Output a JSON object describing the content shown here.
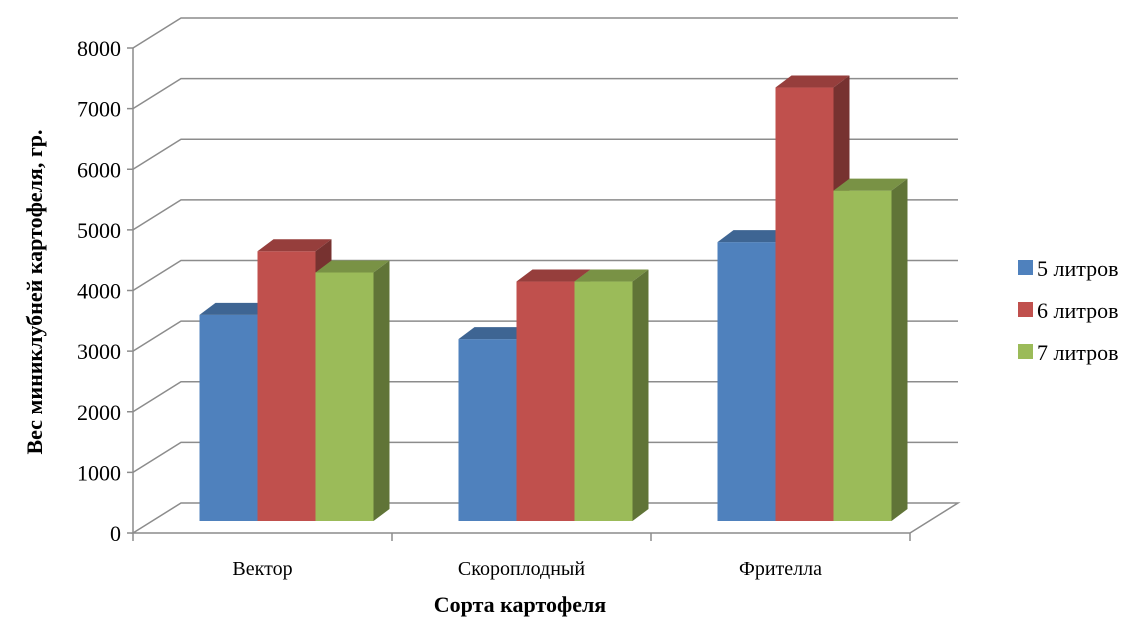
{
  "chart_data": {
    "type": "bar",
    "title": "",
    "xlabel": "Сорта картофеля",
    "ylabel": "Вес миниклубней картофеля,  гр.",
    "categories": [
      "Вектор",
      "Скороплодный",
      "Фрителла"
    ],
    "series": [
      {
        "name": "5 литров",
        "values": [
          3400,
          3000,
          4600
        ],
        "color": "#4F81BD"
      },
      {
        "name": "6 литров",
        "values": [
          4450,
          3950,
          7150
        ],
        "color": "#C0504D"
      },
      {
        "name": "7 литров",
        "values": [
          4100,
          3950,
          5450
        ],
        "color": "#9BBB59"
      }
    ],
    "ylim": [
      0,
      8000
    ],
    "yticks": [
      "0",
      "1000",
      "2000",
      "3000",
      "4000",
      "5000",
      "6000",
      "7000",
      "8000"
    ],
    "grid": true,
    "legend_position": "right"
  }
}
